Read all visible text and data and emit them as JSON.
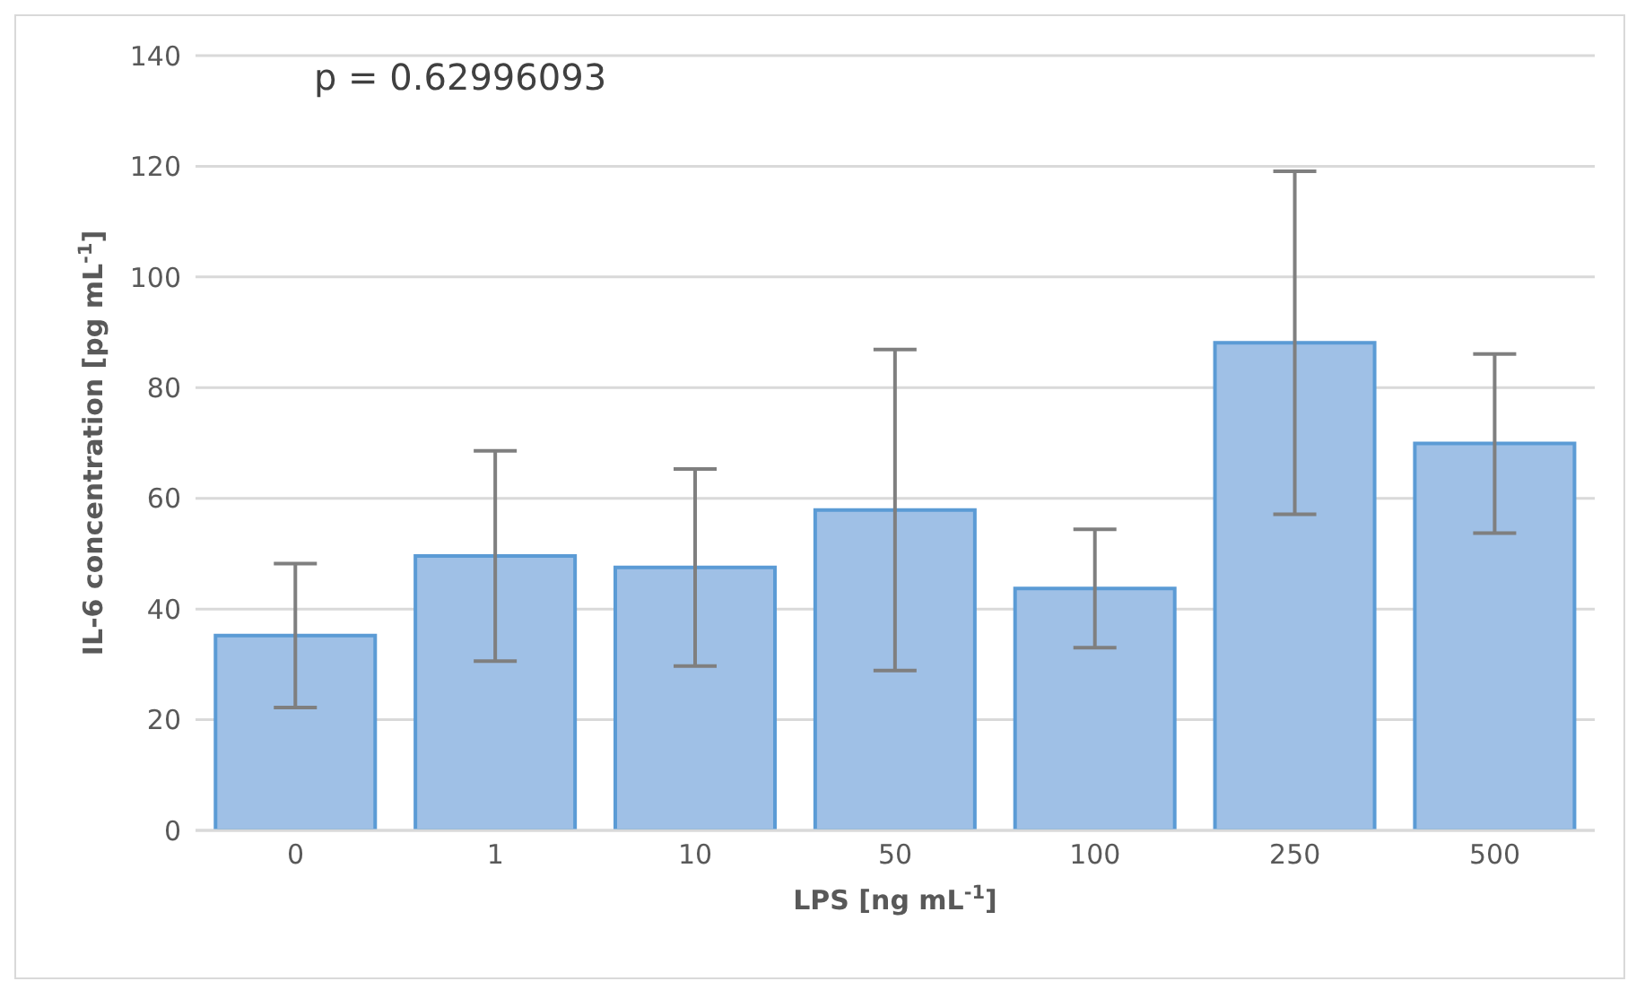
{
  "chart_data": {
    "type": "bar",
    "xlabel": "LPS [ng mL$^{-1}$]",
    "ylabel": "IL-6 concentration [pg mL$^{-1}$]",
    "categories": [
      "0",
      "1",
      "10",
      "50",
      "100",
      "250",
      "500"
    ],
    "values": [
      35.2,
      49.6,
      47.5,
      57.9,
      43.7,
      88.1,
      69.9
    ],
    "errors": [
      13,
      19,
      17.8,
      29,
      10.7,
      31,
      16.2
    ],
    "color": "#9fc0e6",
    "ylim": [
      0,
      140
    ],
    "yticks": [
      0,
      20,
      40,
      60,
      80,
      100,
      120,
      140
    ],
    "grid": "y",
    "annotations": [
      "p = 0.62996093"
    ]
  }
}
